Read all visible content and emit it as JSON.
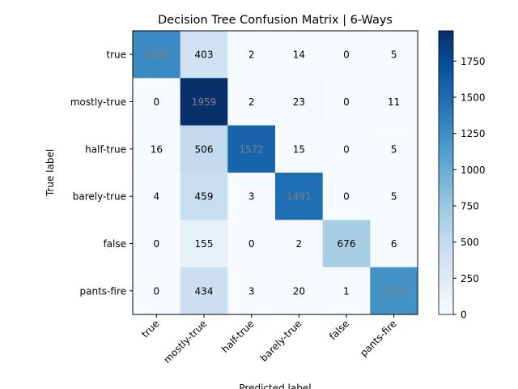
{
  "chart_data": {
    "type": "heatmap",
    "title": "Decision Tree Confusion Matrix | 6-Ways",
    "xlabel": "Predicted label",
    "ylabel": "True label",
    "x_categories": [
      "true",
      "mostly-true",
      "half-true",
      "barely-true",
      "false",
      "pants-fire"
    ],
    "y_categories": [
      "true",
      "mostly-true",
      "half-true",
      "barely-true",
      "false",
      "pants-fire"
    ],
    "values": [
      [
        1280,
        403,
        2,
        14,
        0,
        5
      ],
      [
        0,
        1959,
        2,
        23,
        0,
        11
      ],
      [
        16,
        506,
        1572,
        15,
        0,
        5
      ],
      [
        4,
        459,
        3,
        1491,
        0,
        5
      ],
      [
        0,
        155,
        0,
        2,
        676,
        6
      ],
      [
        0,
        434,
        3,
        20,
        1,
        1218
      ]
    ],
    "colormap": "Blues",
    "colorbar": {
      "range": [
        0,
        1959
      ],
      "ticks": [
        0,
        250,
        500,
        750,
        1000,
        1250,
        1500,
        1750
      ]
    },
    "text_colors": {
      "dark_cell": "#808080",
      "light_cell": "#000000"
    }
  }
}
